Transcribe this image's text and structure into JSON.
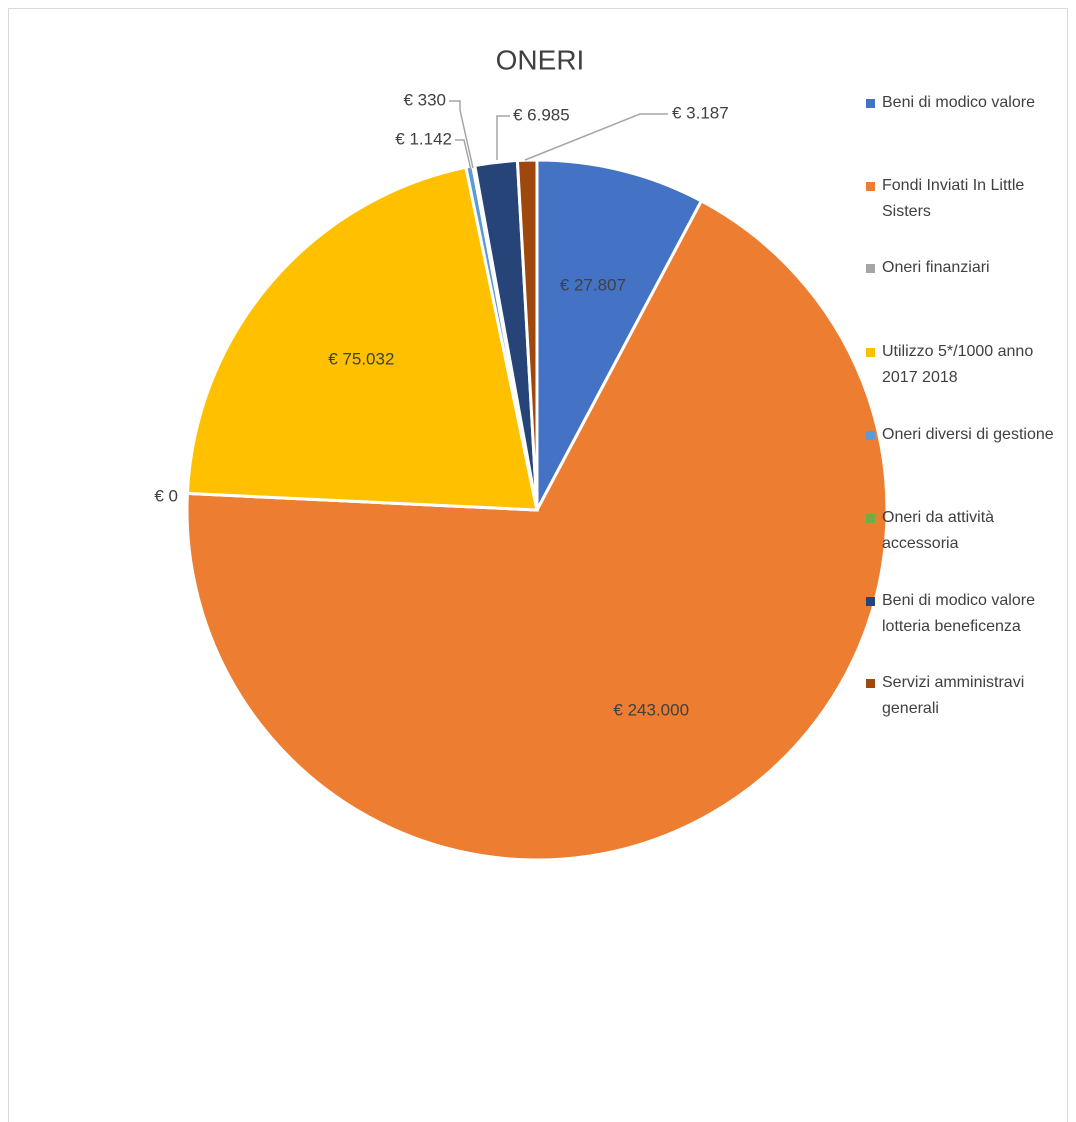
{
  "chart_data": {
    "type": "pie",
    "title": "ONERI",
    "categories": [
      "Beni di modico valore",
      "Fondi Inviati In Little Sisters",
      "Oneri finanziari",
      "Utilizzo 5*/1000 anno 2017 2018",
      "Oneri diversi di gestione",
      "Oneri da attività accessoria",
      "Beni di modico valore lotteria beneficenza",
      "Servizi amministravi generali"
    ],
    "values": [
      27807,
      243000,
      0,
      75032,
      1142,
      330,
      6985,
      3187
    ],
    "value_labels": [
      "€ 27.807",
      "€ 243.000",
      "€ 0",
      "€ 75.032",
      "€ 1.142",
      "€ 330",
      "€ 6.985",
      "€ 3.187"
    ],
    "colors": [
      "#4472c4",
      "#ed7d31",
      "#a5a5a5",
      "#ffc000",
      "#5b9bd5",
      "#70ad47",
      "#264478",
      "#9e480e"
    ],
    "legend": "right"
  }
}
